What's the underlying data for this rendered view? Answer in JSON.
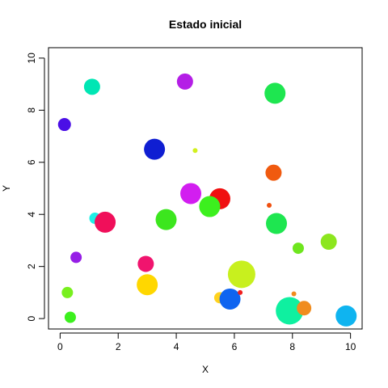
{
  "chart_data": {
    "type": "scatter",
    "title": "Estado inicial",
    "xlabel": "X",
    "ylabel": "Y",
    "xlim": [
      -0.4,
      10.4
    ],
    "ylim": [
      -0.4,
      10.4
    ],
    "xticks": [
      0,
      2,
      4,
      6,
      8,
      10
    ],
    "yticks": [
      0,
      2,
      4,
      6,
      8,
      10
    ],
    "grid": false,
    "legend": "none",
    "points": [
      {
        "x": 0.15,
        "y": 7.45,
        "size": 1.6,
        "color": "#4B0FE6"
      },
      {
        "x": 1.1,
        "y": 8.9,
        "size": 2.0,
        "color": "#00E6B4"
      },
      {
        "x": 4.3,
        "y": 9.1,
        "size": 2.0,
        "color": "#B41EE6"
      },
      {
        "x": 7.4,
        "y": 8.65,
        "size": 2.6,
        "color": "#1EE650"
      },
      {
        "x": 3.25,
        "y": 6.5,
        "size": 2.6,
        "color": "#0F1ED2"
      },
      {
        "x": 4.65,
        "y": 6.45,
        "size": 0.6,
        "color": "#D2F01E"
      },
      {
        "x": 7.35,
        "y": 5.6,
        "size": 2.0,
        "color": "#F05A0F"
      },
      {
        "x": 4.5,
        "y": 4.8,
        "size": 2.6,
        "color": "#D21EF0"
      },
      {
        "x": 5.5,
        "y": 4.6,
        "size": 2.6,
        "color": "#F00F0F"
      },
      {
        "x": 5.15,
        "y": 4.3,
        "size": 2.6,
        "color": "#3CF01E"
      },
      {
        "x": 7.2,
        "y": 4.35,
        "size": 0.6,
        "color": "#F0500F"
      },
      {
        "x": 1.2,
        "y": 3.85,
        "size": 1.4,
        "color": "#1EF0E6"
      },
      {
        "x": 1.55,
        "y": 3.7,
        "size": 2.6,
        "color": "#F00F5A"
      },
      {
        "x": 3.65,
        "y": 3.8,
        "size": 2.6,
        "color": "#3CE61E"
      },
      {
        "x": 7.45,
        "y": 3.65,
        "size": 2.6,
        "color": "#1EE650"
      },
      {
        "x": 9.25,
        "y": 2.95,
        "size": 2.0,
        "color": "#8CE61E"
      },
      {
        "x": 8.2,
        "y": 2.7,
        "size": 1.4,
        "color": "#6EE61E"
      },
      {
        "x": 0.55,
        "y": 2.35,
        "size": 1.4,
        "color": "#961EE6"
      },
      {
        "x": 2.95,
        "y": 2.1,
        "size": 2.0,
        "color": "#F0146E"
      },
      {
        "x": 6.25,
        "y": 1.7,
        "size": 3.4,
        "color": "#C8F01E"
      },
      {
        "x": 3.0,
        "y": 1.3,
        "size": 2.6,
        "color": "#FFD700"
      },
      {
        "x": 0.25,
        "y": 1.0,
        "size": 1.4,
        "color": "#78F01E"
      },
      {
        "x": 5.5,
        "y": 0.8,
        "size": 1.4,
        "color": "#FFD21E"
      },
      {
        "x": 5.85,
        "y": 0.75,
        "size": 2.6,
        "color": "#0F64F0"
      },
      {
        "x": 6.2,
        "y": 1.0,
        "size": 0.6,
        "color": "#F01E1E"
      },
      {
        "x": 8.05,
        "y": 0.95,
        "size": 0.6,
        "color": "#F08C1E"
      },
      {
        "x": 7.9,
        "y": 0.3,
        "size": 3.4,
        "color": "#0FF0A0"
      },
      {
        "x": 8.4,
        "y": 0.4,
        "size": 1.8,
        "color": "#F08C1E"
      },
      {
        "x": 0.35,
        "y": 0.05,
        "size": 1.4,
        "color": "#3CF01E"
      },
      {
        "x": 9.85,
        "y": 0.1,
        "size": 2.6,
        "color": "#0FB4F0"
      }
    ]
  }
}
